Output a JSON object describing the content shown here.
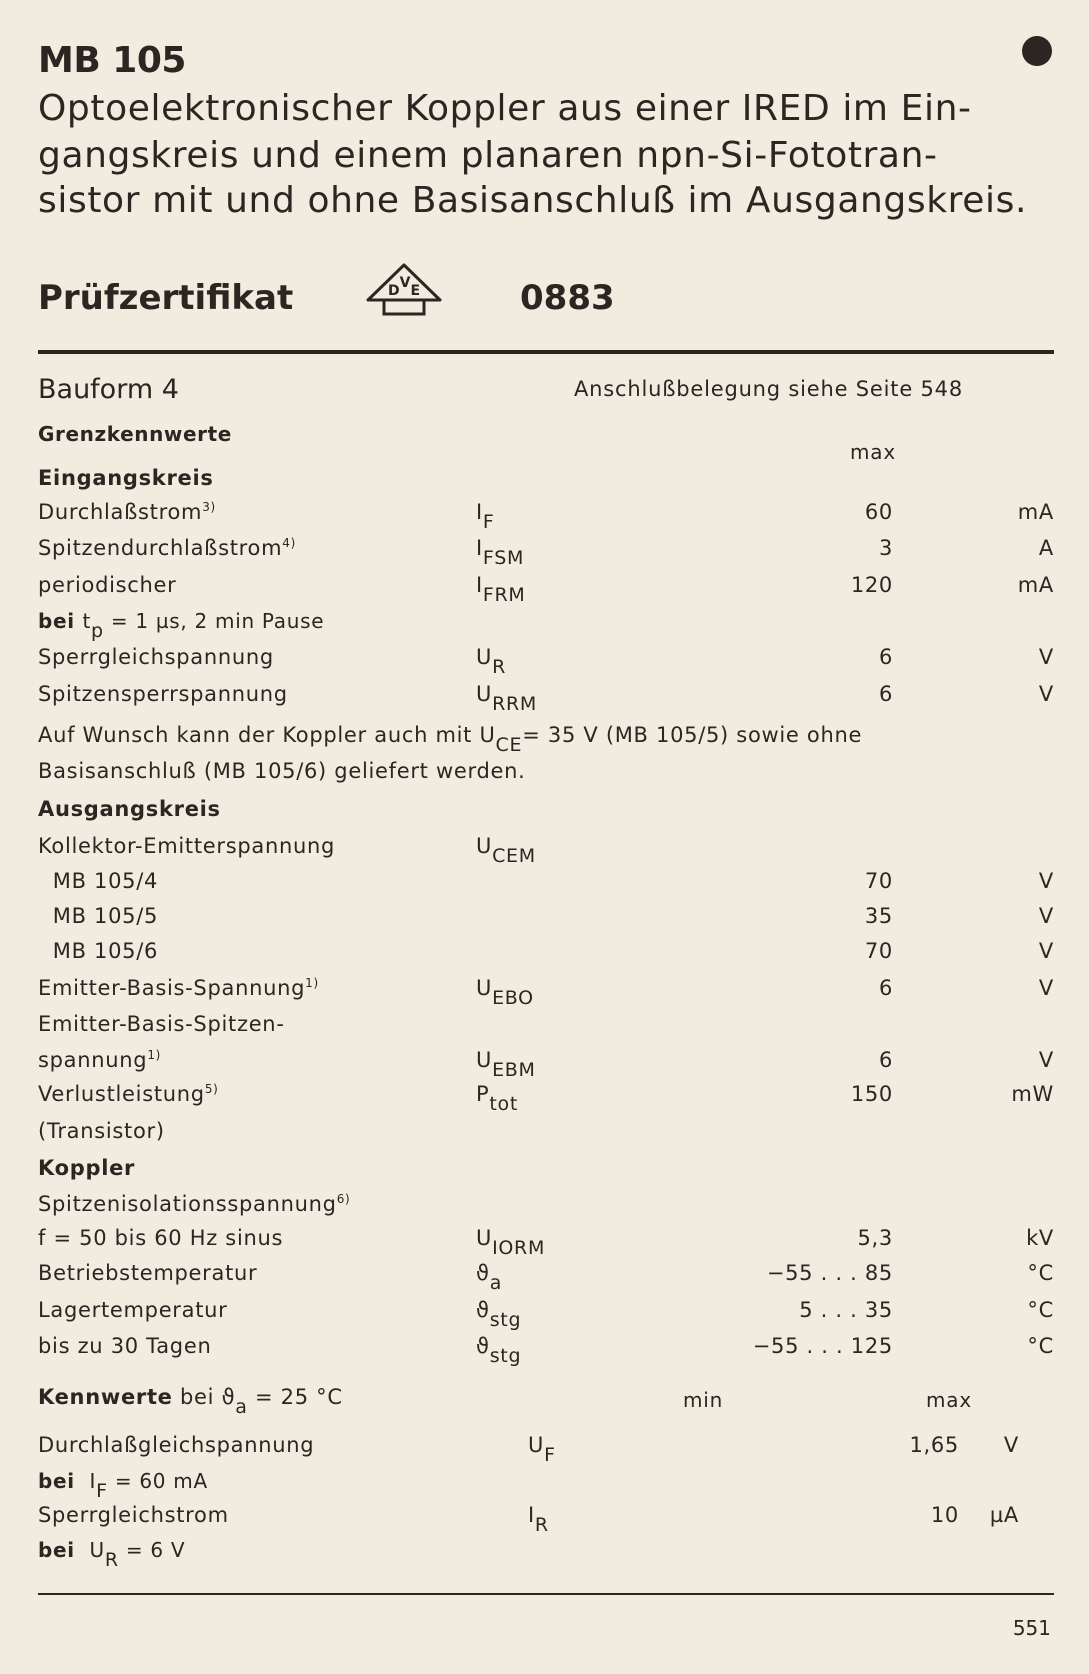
{
  "title": "MB 105",
  "description": [
    "Optoelektronischer Koppler aus einer IRED im Ein-",
    "gangskreis und einem planaren npn-Si-Fototran-",
    "sistor mit und ohne Basisanschluß im Ausgangskreis."
  ],
  "certificate": {
    "label": "Prüfzertifikat",
    "logo_text": "DVE",
    "number": "0883"
  },
  "bauform": "Bauform 4",
  "anschluss": "Anschlußbelegung siehe Seite 548",
  "limits": {
    "heading": "Grenzkennwerte",
    "col_max": "max",
    "rows": [
      {
        "label": "Eingangskreis",
        "bold": true
      },
      {
        "label": "Durchlaßstrom",
        "note": "3)",
        "sym": "I",
        "sub": "F",
        "value": "60",
        "unit": "mA"
      },
      {
        "label": "Spitzendurchlaßstrom",
        "note": "4)",
        "sym": "I",
        "sub": "FSM",
        "value": "3",
        "unit": "A"
      },
      {
        "label": "periodischer",
        "sym": "I",
        "sub": "FRM",
        "value": "120",
        "unit": "mA"
      },
      {
        "prefix": "bei",
        "label": "t",
        "labelsub": "p",
        "label2": " = 1 µs, 2 min Pause",
        "cond": true
      },
      {
        "label": "Sperrgleichspannung",
        "sym": "U",
        "sub": "R",
        "value": "6",
        "unit": "V"
      },
      {
        "label": "Spitzensperrspannung",
        "sym": "U",
        "sub": "RRM",
        "value": "6",
        "unit": "V"
      },
      {
        "label": "Auf Wunsch kann der Koppler auch mit U",
        "labelsub": "CE",
        "label2": "= 35 V (MB 105/5) sowie ohne"
      },
      {
        "label": "Basisanschluß (MB 105/6) geliefert werden."
      },
      {
        "label": "Ausgangskreis",
        "bold": true
      },
      {
        "label": "Kollektor-Emitterspannung",
        "sym": "U",
        "sub": "CEM"
      },
      {
        "label": "  MB 105/4",
        "value": "70",
        "unit": "V"
      },
      {
        "label": "  MB 105/5",
        "value": "35",
        "unit": "V"
      },
      {
        "label": "  MB 105/6",
        "value": "70",
        "unit": "V"
      },
      {
        "label": "Emitter-Basis-Spannung",
        "note": "1)",
        "sym": "U",
        "sub": "EBO",
        "value": "6",
        "unit": "V"
      },
      {
        "label": "Emitter-Basis-Spitzen-"
      },
      {
        "label": "spannung",
        "note": "1)",
        "sym": "U",
        "sub": "EBM",
        "value": "6",
        "unit": "V"
      },
      {
        "label": "Verlustleistung",
        "note": "5)",
        "sym": "P",
        "sub": "tot",
        "value": "150",
        "unit": "mW"
      },
      {
        "label": "(Transistor)"
      },
      {
        "label": "Koppler",
        "bold": true
      },
      {
        "label": "Spitzenisolationsspannung",
        "note": "6)"
      },
      {
        "label": "f = 50 bis 60 Hz sinus",
        "sym": "U",
        "sub": "IORM",
        "value": "5,3",
        "unit": "kV"
      },
      {
        "label": "Betriebstemperatur",
        "sym": "ϑ",
        "sub": "a",
        "value": "−55 . . . 85",
        "unit": "°C"
      },
      {
        "label": "Lagertemperatur",
        "sym": "ϑ",
        "sub": "stg",
        "value": "5 . . . 35",
        "unit": "°C"
      },
      {
        "label": "bis zu 30 Tagen",
        "sym": "ϑ",
        "sub": "stg",
        "value": "−55 . . . 125",
        "unit": "°C"
      }
    ]
  },
  "characteristics": {
    "heading_bold": "Kennwerte",
    "heading_rest": " bei ϑ",
    "heading_sub": "a",
    "heading_end": " = 25 °C",
    "col_min": "min",
    "col_max": "max",
    "rows": [
      {
        "label": "Durchlaßgleichspannung",
        "sym": "U",
        "sub": "F",
        "value": "1,65",
        "unit": "V"
      },
      {
        "prefix": "bei",
        "label": " I",
        "labelsub": "F",
        "label2": " = 60 mA",
        "cond": true
      },
      {
        "label": "Sperrgleichstrom",
        "sym": "I",
        "sub": "R",
        "value": "10",
        "unit": "µA"
      },
      {
        "prefix": "bei",
        "label": " U",
        "labelsub": "R",
        "label2": " = 6 V",
        "cond": true
      }
    ]
  },
  "page_number": "551"
}
